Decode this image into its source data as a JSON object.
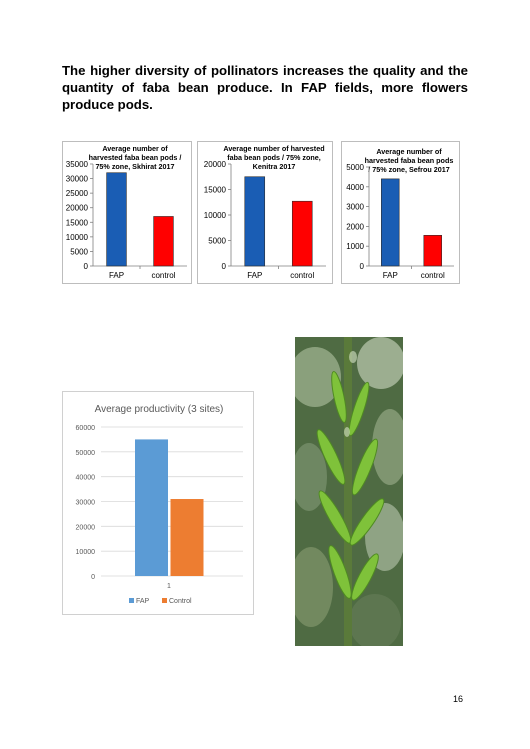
{
  "heading": "The higher diversity of pollinators increases the quality and the quantity of faba bean produce. In FAP fields, more flowers produce pods.",
  "page_number": "16",
  "colors": {
    "fap_small": "#1a5db4",
    "control_small": "#ff0000",
    "fap_large": "#5b9bd5",
    "control_large": "#ed7d31"
  },
  "chart_data": [
    {
      "type": "bar",
      "title_lines": [
        "Average number of",
        "harvested faba bean pods /",
        "75% zone, Skhirat 2017"
      ],
      "categories": [
        "FAP",
        "control"
      ],
      "values": [
        32000,
        17000
      ],
      "ylim": [
        0,
        35000
      ],
      "yticks": [
        "0",
        "5000",
        "10000",
        "15000",
        "20000",
        "25000",
        "30000",
        "35000"
      ],
      "grid": false,
      "legend": "none"
    },
    {
      "type": "bar",
      "title_lines": [
        "Average number of harvested",
        "faba bean pods / 75% zone,",
        "Kenitra 2017"
      ],
      "categories": [
        "FAP",
        "control"
      ],
      "values": [
        17500,
        12700
      ],
      "ylim": [
        0,
        20000
      ],
      "yticks": [
        "0",
        "5000",
        "10000",
        "15000",
        "20000"
      ],
      "grid": false,
      "legend": "none"
    },
    {
      "type": "bar",
      "title_lines": [
        "Average number of",
        "harvested faba bean pods",
        "/ 75% zone, Sefrou 2017"
      ],
      "categories": [
        "FAP",
        "control"
      ],
      "values": [
        4400,
        1550
      ],
      "ylim": [
        0,
        5000
      ],
      "yticks": [
        "0",
        "1000",
        "2000",
        "3000",
        "4000",
        "5000"
      ],
      "grid": false,
      "legend": "none"
    },
    {
      "type": "bar",
      "title": "Average productivity (3 sites)",
      "categories": [
        "1"
      ],
      "series": [
        {
          "name": "FAP",
          "values": [
            55000
          ]
        },
        {
          "name": "Control",
          "values": [
            31000
          ]
        }
      ],
      "ylim": [
        0,
        60000
      ],
      "yticks": [
        "0",
        "10000",
        "20000",
        "30000",
        "40000",
        "50000",
        "60000"
      ],
      "grid": true,
      "legend": "bottom"
    }
  ]
}
